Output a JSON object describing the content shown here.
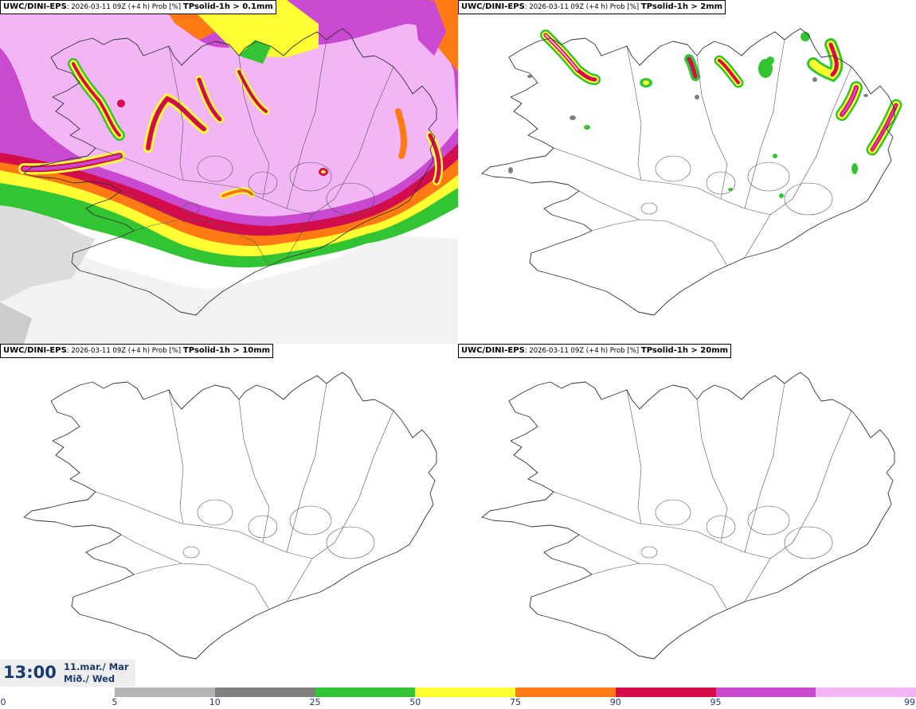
{
  "panels": [
    {
      "model": "UWC/DINI-EPS",
      "meta": ": 2026-03-11 09Z (+4 h) Prob [%]",
      "var": "TPsolid-1h > 0.1mm"
    },
    {
      "model": "UWC/DINI-EPS",
      "meta": ": 2026-03-11 09Z (+4 h) Prob [%]",
      "var": "TPsolid-1h > 2mm"
    },
    {
      "model": "UWC/DINI-EPS",
      "meta": ": 2026-03-11 09Z (+4 h) Prob [%]",
      "var": "TPsolid-1h > 10mm"
    },
    {
      "model": "UWC/DINI-EPS",
      "meta": ": 2026-03-11 09Z (+4 h) Prob [%]",
      "var": "TPsolid-1h > 20mm"
    }
  ],
  "time": {
    "clock": "13:00",
    "date_line1": "11.mar./ Mar",
    "date_line2": "Mið./ Wed"
  },
  "colorbar": {
    "ticks": [
      "0",
      "5",
      "10",
      "25",
      "50",
      "75",
      "90",
      "95",
      "99"
    ],
    "colors": [
      "#b4b4b4",
      "#7f7f7f",
      "#33c433",
      "#ffff33",
      "#ff7a12",
      "#d30d4c",
      "#c94ad0",
      "#f2b5f5"
    ]
  }
}
